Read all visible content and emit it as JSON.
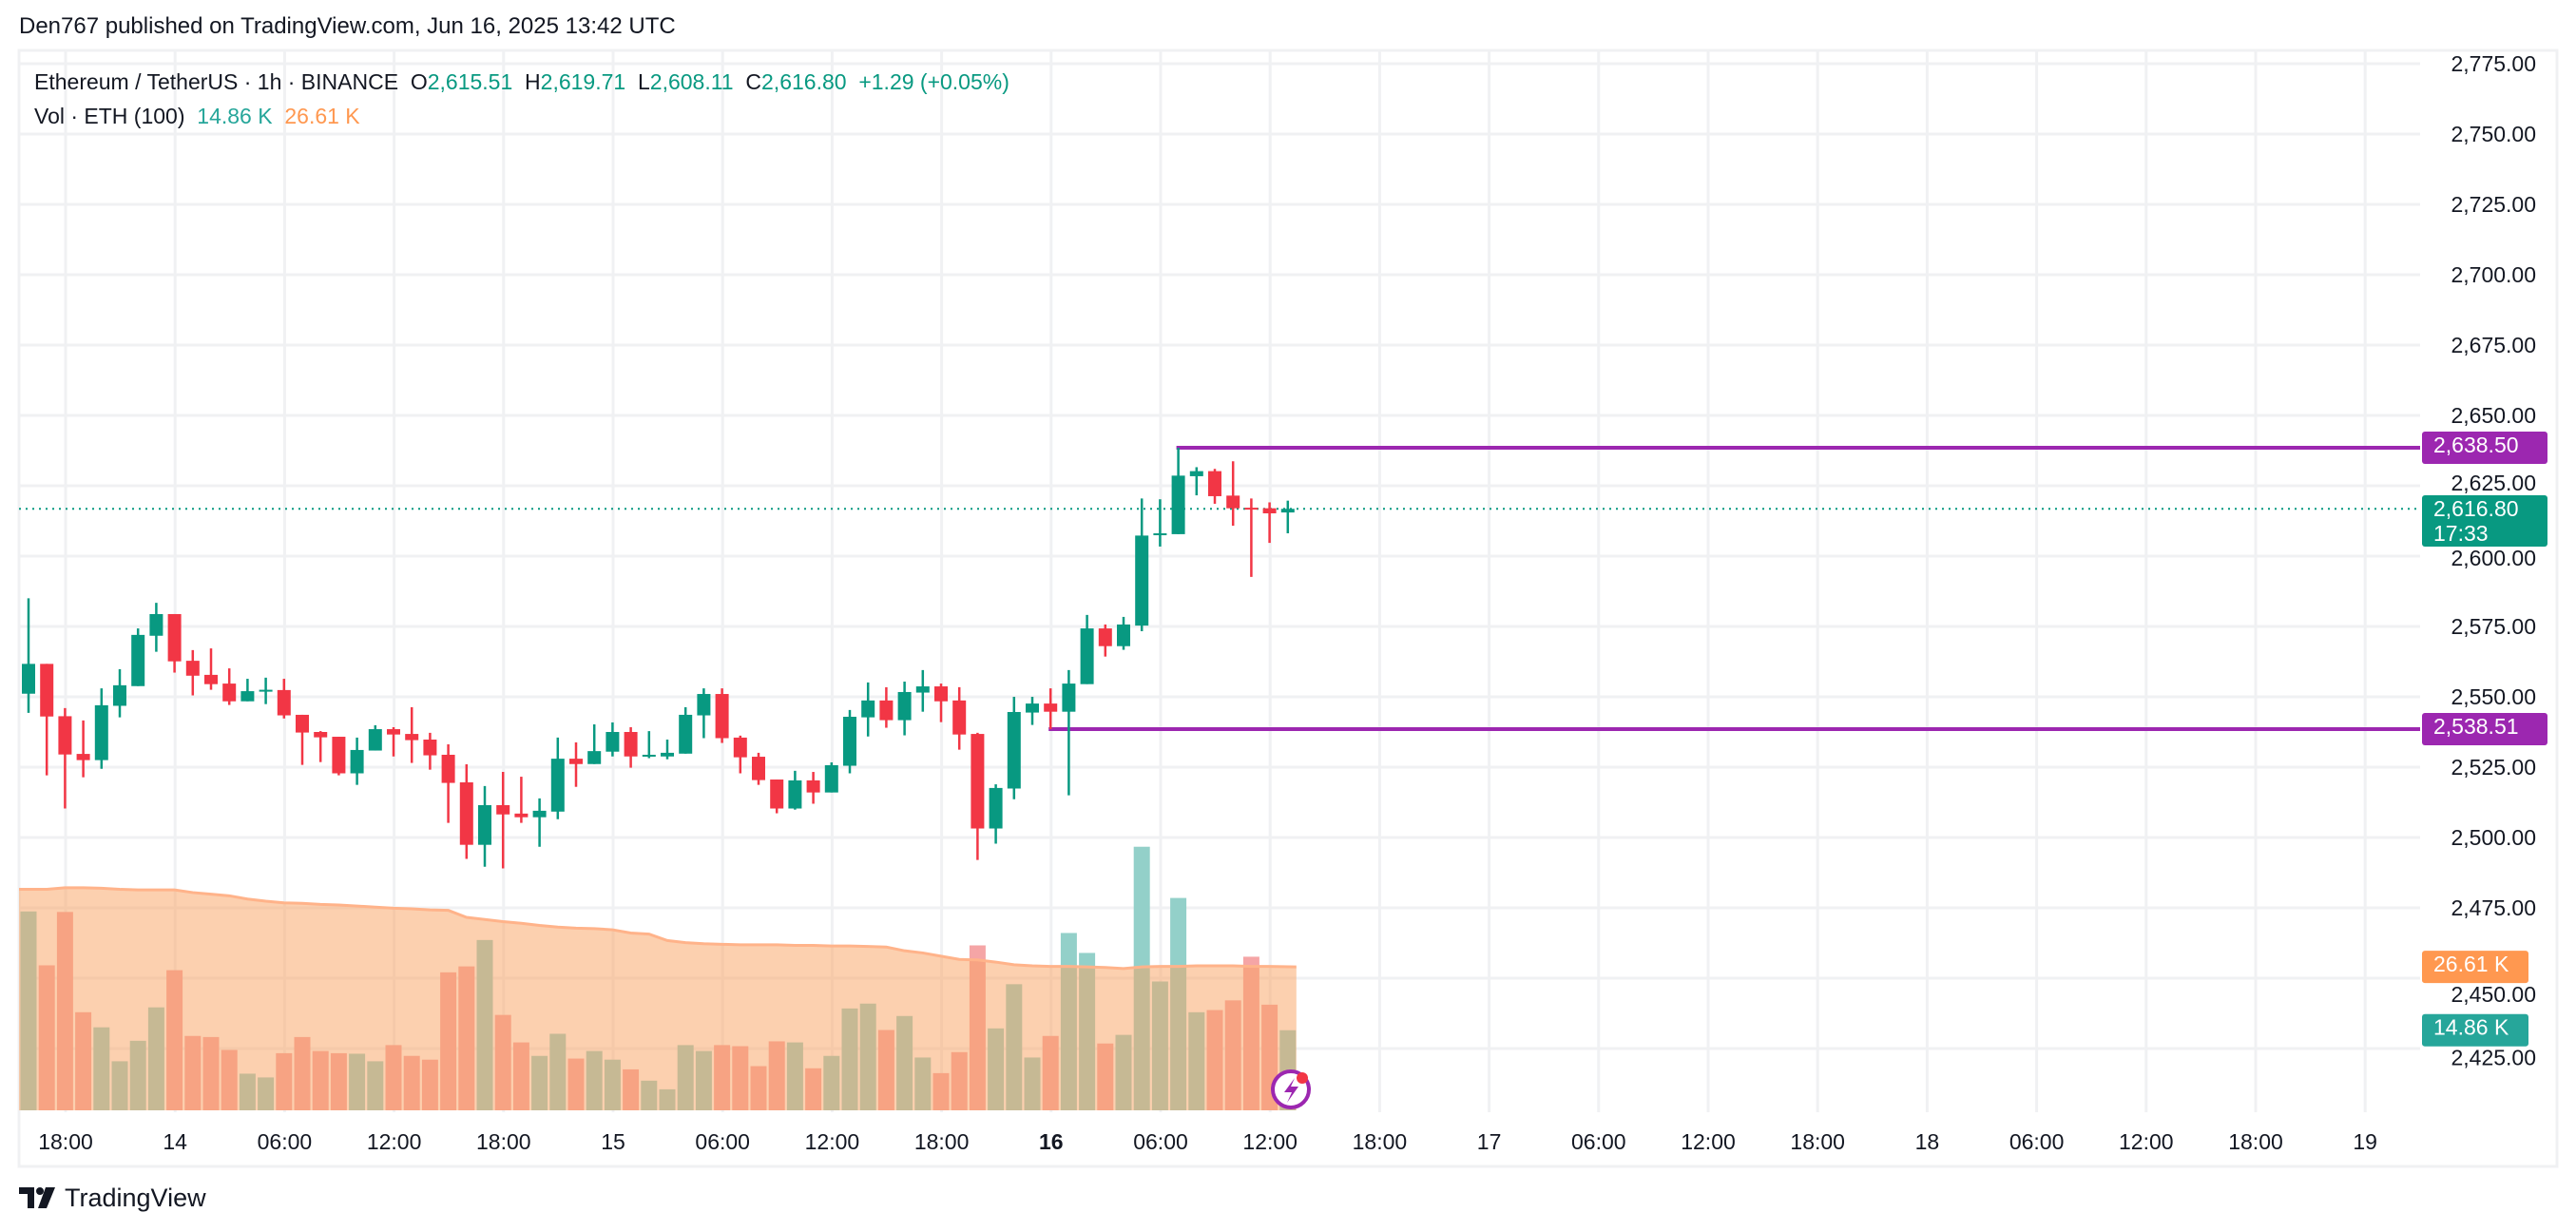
{
  "header": {
    "published": "Den767 published on TradingView.com, Jun 16, 2025 13:42 UTC"
  },
  "legend": {
    "symbol": "Ethereum / TetherUS · 1h · BINANCE",
    "o_label": "O",
    "o": "2,615.51",
    "h_label": "H",
    "h": "2,619.71",
    "l_label": "L",
    "l": "2,608.11",
    "c_label": "C",
    "c": "2,616.80",
    "change": "+1.29 (+0.05%)",
    "vol_label": "Vol · ETH (100)",
    "vol_value": "14.86 K",
    "vol_ma": "26.61 K"
  },
  "logo": {
    "text": "TradingView"
  },
  "colors": {
    "up": "#089981",
    "down": "#f23645",
    "level_line": "#9c27b0",
    "vol_ma": "#ff9850",
    "vol_label": "#26a69a"
  },
  "chart_data": {
    "type": "candlestick",
    "symbol": "ETHUSDT",
    "interval": "1h",
    "ylim": [
      2412,
      2785
    ],
    "y_ticks": [
      "2,775.00",
      "2,750.00",
      "2,725.00",
      "2,700.00",
      "2,675.00",
      "2,650.00",
      "2,625.00",
      "2,600.00",
      "2,575.00",
      "2,550.00",
      "2,525.00",
      "2,500.00",
      "2,475.00",
      "2,450.00",
      "2,425.00"
    ],
    "x_ticks": [
      {
        "label": "18:00",
        "bold": false
      },
      {
        "label": "14",
        "bold": false
      },
      {
        "label": "06:00",
        "bold": false
      },
      {
        "label": "12:00",
        "bold": false
      },
      {
        "label": "18:00",
        "bold": false
      },
      {
        "label": "15",
        "bold": false
      },
      {
        "label": "06:00",
        "bold": false
      },
      {
        "label": "12:00",
        "bold": false
      },
      {
        "label": "18:00",
        "bold": false
      },
      {
        "label": "16",
        "bold": true
      },
      {
        "label": "06:00",
        "bold": false
      },
      {
        "label": "12:00",
        "bold": false
      },
      {
        "label": "18:00",
        "bold": false
      },
      {
        "label": "17",
        "bold": false
      },
      {
        "label": "06:00",
        "bold": false
      },
      {
        "label": "12:00",
        "bold": false
      },
      {
        "label": "18:00",
        "bold": false
      },
      {
        "label": "18",
        "bold": false
      },
      {
        "label": "06:00",
        "bold": false
      },
      {
        "label": "12:00",
        "bold": false
      },
      {
        "label": "18:00",
        "bold": false
      },
      {
        "label": "19",
        "bold": false
      }
    ],
    "grid": true,
    "candles": [
      [
        2551.1,
        2585.0,
        2544.3,
        2561.7
      ],
      [
        2561.7,
        2561.7,
        2522.1,
        2543.0
      ],
      [
        2543.1,
        2546.0,
        2510.3,
        2529.5
      ],
      [
        2529.7,
        2541.6,
        2521.4,
        2527.5
      ],
      [
        2527.5,
        2553.0,
        2524.4,
        2547.0
      ],
      [
        2546.8,
        2559.8,
        2542.7,
        2554.1
      ],
      [
        2553.8,
        2574.3,
        2553.8,
        2572.0
      ],
      [
        2571.7,
        2583.4,
        2566.0,
        2579.4
      ],
      [
        2579.4,
        2579.4,
        2558.6,
        2562.6
      ],
      [
        2562.8,
        2566.6,
        2550.5,
        2557.5
      ],
      [
        2557.8,
        2567.2,
        2552.5,
        2554.5
      ],
      [
        2554.7,
        2560.1,
        2547.1,
        2548.4
      ],
      [
        2548.4,
        2556.4,
        2548.4,
        2552.0
      ],
      [
        2552.2,
        2556.8,
        2547.4,
        2552.5
      ],
      [
        2552.4,
        2556.4,
        2542.3,
        2543.4
      ],
      [
        2543.6,
        2543.6,
        2525.8,
        2537.3
      ],
      [
        2537.5,
        2537.8,
        2526.8,
        2535.6
      ],
      [
        2535.8,
        2535.8,
        2522.1,
        2522.8
      ],
      [
        2522.8,
        2535.5,
        2518.7,
        2531.1
      ],
      [
        2530.9,
        2539.9,
        2530.9,
        2538.5
      ],
      [
        2538.5,
        2539.2,
        2528.8,
        2536.6
      ],
      [
        2536.8,
        2546.3,
        2526.5,
        2534.6
      ],
      [
        2534.8,
        2537.2,
        2524.1,
        2529.2
      ],
      [
        2529.4,
        2533.1,
        2505.2,
        2519.4
      ],
      [
        2519.6,
        2526.0,
        2492.4,
        2497.4
      ],
      [
        2497.4,
        2518.3,
        2489.6,
        2511.5
      ],
      [
        2511.5,
        2523.3,
        2489.0,
        2508.2
      ],
      [
        2508.5,
        2521.6,
        2505.2,
        2507.2
      ],
      [
        2507.2,
        2513.9,
        2496.7,
        2509.5
      ],
      [
        2509.2,
        2535.5,
        2506.5,
        2528.0
      ],
      [
        2528.0,
        2533.8,
        2518.0,
        2526.1
      ],
      [
        2526.1,
        2540.2,
        2526.1,
        2530.7
      ],
      [
        2530.5,
        2540.9,
        2528.8,
        2537.5
      ],
      [
        2537.5,
        2539.2,
        2524.8,
        2528.8
      ],
      [
        2529.0,
        2537.8,
        2528.2,
        2529.4
      ],
      [
        2528.8,
        2534.8,
        2527.8,
        2530.1
      ],
      [
        2529.8,
        2546.3,
        2529.8,
        2543.6
      ],
      [
        2543.4,
        2553.0,
        2535.3,
        2551.0
      ],
      [
        2551.0,
        2553.0,
        2533.6,
        2535.3
      ],
      [
        2535.5,
        2536.2,
        2522.8,
        2528.5
      ],
      [
        2528.7,
        2530.1,
        2518.7,
        2520.4
      ],
      [
        2520.6,
        2520.6,
        2508.6,
        2510.3
      ],
      [
        2510.3,
        2523.7,
        2509.9,
        2520.3
      ],
      [
        2520.3,
        2523.3,
        2512.0,
        2516.0
      ],
      [
        2516.0,
        2526.7,
        2516.0,
        2525.7
      ],
      [
        2525.5,
        2545.3,
        2522.8,
        2542.9
      ],
      [
        2542.7,
        2555.1,
        2535.9,
        2548.7
      ],
      [
        2548.7,
        2553.4,
        2539.0,
        2541.7
      ],
      [
        2541.7,
        2555.4,
        2536.3,
        2551.7
      ],
      [
        2551.5,
        2559.5,
        2544.7,
        2553.7
      ],
      [
        2553.7,
        2554.7,
        2541.0,
        2548.4
      ],
      [
        2548.7,
        2553.4,
        2531.2,
        2536.6
      ],
      [
        2536.8,
        2537.2,
        2492.0,
        2503.2
      ],
      [
        2503.2,
        2518.9,
        2497.8,
        2517.6
      ],
      [
        2517.4,
        2550.0,
        2513.6,
        2544.6
      ],
      [
        2544.4,
        2550.0,
        2540.0,
        2547.6
      ],
      [
        2547.6,
        2553.0,
        2538.51,
        2544.7
      ],
      [
        2544.7,
        2559.5,
        2515.0,
        2554.7
      ],
      [
        2554.5,
        2579.1,
        2554.5,
        2574.3
      ],
      [
        2574.3,
        2575.7,
        2564.3,
        2568.0
      ],
      [
        2568.0,
        2578.4,
        2566.7,
        2575.7
      ],
      [
        2575.3,
        2620.5,
        2573.3,
        2607.3
      ],
      [
        2607.8,
        2620.2,
        2603.4,
        2608.1
      ],
      [
        2607.8,
        2638.5,
        2607.8,
        2628.6
      ],
      [
        2628.4,
        2631.6,
        2621.6,
        2630.2
      ],
      [
        2630.2,
        2631.0,
        2618.6,
        2621.3
      ],
      [
        2621.5,
        2633.7,
        2610.8,
        2617.0
      ],
      [
        2617.2,
        2620.5,
        2592.6,
        2617.0
      ],
      [
        2617.0,
        2619.1,
        2604.7,
        2615.2
      ],
      [
        2615.51,
        2619.71,
        2608.11,
        2616.8
      ]
    ],
    "volume_k": [
      36.9,
      26.9,
      36.8,
      18.2,
      15.4,
      9.1,
      12.9,
      19.1,
      26.0,
      13.8,
      13.6,
      11.2,
      6.8,
      6.1,
      10.6,
      13.6,
      11.0,
      10.6,
      10.5,
      9.1,
      12.1,
      10.1,
      9.4,
      25.6,
      26.7,
      31.6,
      17.7,
      12.6,
      10.1,
      14.2,
      9.6,
      11.0,
      9.4,
      7.6,
      5.5,
      3.9,
      12.1,
      11.0,
      12.1,
      11.9,
      8.2,
      12.8,
      12.6,
      7.8,
      10.1,
      18.9,
      19.8,
      14.9,
      17.5,
      9.8,
      6.9,
      10.8,
      30.6,
      15.2,
      23.4,
      9.8,
      13.8,
      32.9,
      29.2,
      12.4,
      14.0,
      48.9,
      23.9,
      39.4,
      18.2,
      18.6,
      20.4,
      28.5,
      19.6,
      14.86
    ],
    "volume_ma_k": [
      41.0,
      41.0,
      41.3,
      41.3,
      41.2,
      41.0,
      40.9,
      40.9,
      40.9,
      40.4,
      40.1,
      39.8,
      39.2,
      38.8,
      38.5,
      38.4,
      38.2,
      38.1,
      37.9,
      37.7,
      37.5,
      37.4,
      37.2,
      37.1,
      35.8,
      35.4,
      35.0,
      34.7,
      34.3,
      34.0,
      33.8,
      33.7,
      33.5,
      32.9,
      32.7,
      31.5,
      31.1,
      30.9,
      30.8,
      30.7,
      30.7,
      30.7,
      30.6,
      30.6,
      30.5,
      30.5,
      30.4,
      30.3,
      29.6,
      29.2,
      28.6,
      28.0,
      27.9,
      27.5,
      27.0,
      26.8,
      26.7,
      26.7,
      26.6,
      26.5,
      26.3,
      26.6,
      26.7,
      26.7,
      26.8,
      26.8,
      26.8,
      26.7,
      26.7,
      26.61
    ],
    "levels": [
      {
        "price": 2638.5,
        "label": "2,638.50",
        "from_candle": 64
      },
      {
        "price": 2538.51,
        "label": "2,538.51",
        "from_candle": 57
      }
    ],
    "last_price": {
      "price": 2616.8,
      "label": "2,616.80",
      "countdown": "17:33"
    },
    "volume_labels": {
      "ma": "26.61 K",
      "last": "14.86 K"
    }
  }
}
